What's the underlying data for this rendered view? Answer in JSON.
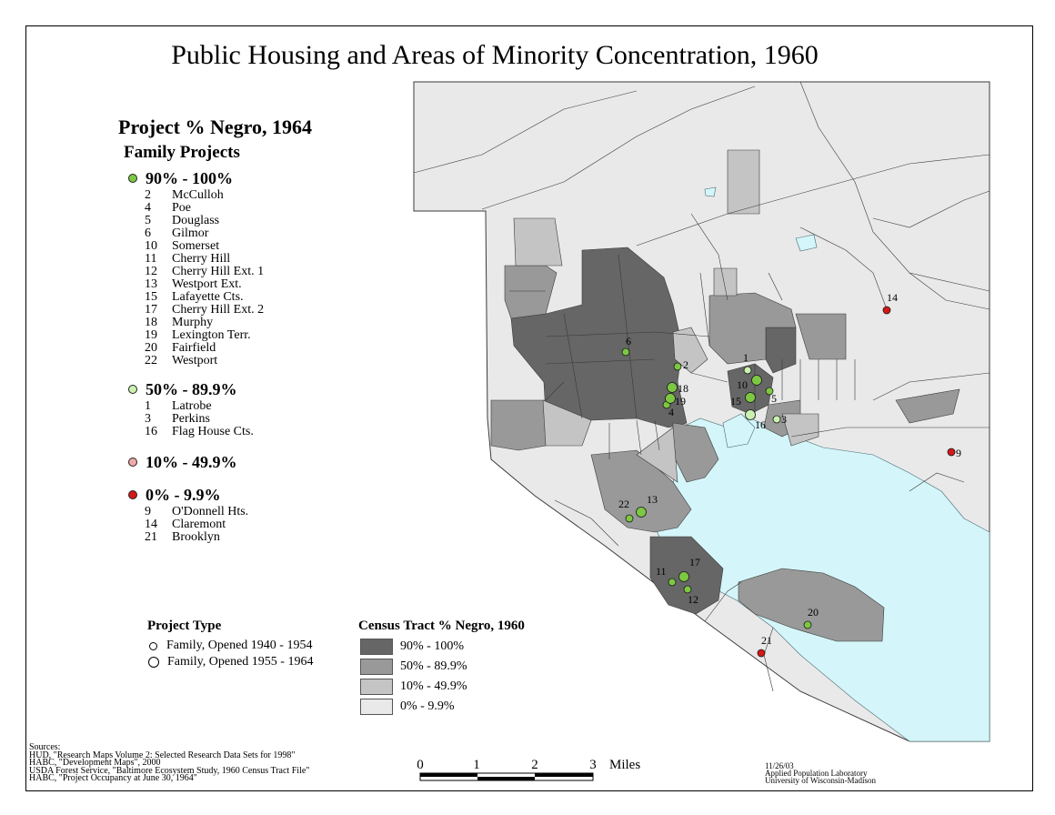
{
  "title": "Public Housing and Areas of Minority Concentration, 1960",
  "legend": {
    "title": "Project % Negro, 1964",
    "subtitle": "Family Projects",
    "groups": [
      {
        "label": "90% - 100%",
        "color": "#7cc842",
        "items": [
          {
            "num": "2",
            "name": "McCulloh"
          },
          {
            "num": "4",
            "name": "Poe"
          },
          {
            "num": "5",
            "name": "Douglass"
          },
          {
            "num": "6",
            "name": "Gilmor"
          },
          {
            "num": "10",
            "name": "Somerset"
          },
          {
            "num": "11",
            "name": "Cherry Hill"
          },
          {
            "num": "12",
            "name": "Cherry Hill Ext. 1"
          },
          {
            "num": "13",
            "name": "Westport Ext."
          },
          {
            "num": "15",
            "name": "Lafayette Cts."
          },
          {
            "num": "17",
            "name": "Cherry Hill Ext. 2"
          },
          {
            "num": "18",
            "name": "Murphy"
          },
          {
            "num": "19",
            "name": "Lexington Terr."
          },
          {
            "num": "20",
            "name": "Fairfield"
          },
          {
            "num": "22",
            "name": "Westport"
          }
        ]
      },
      {
        "label": "50% - 89.9%",
        "color": "#c9f2b0",
        "items": [
          {
            "num": "1",
            "name": "Latrobe"
          },
          {
            "num": "3",
            "name": "Perkins"
          },
          {
            "num": "16",
            "name": "Flag House Cts."
          }
        ]
      },
      {
        "label": "10% - 49.9%",
        "color": "#f0a8a8",
        "items": []
      },
      {
        "label": "0% - 9.9%",
        "color": "#d41818",
        "items": [
          {
            "num": "9",
            "name": "O'Donnell Hts."
          },
          {
            "num": "14",
            "name": "Claremont"
          },
          {
            "num": "21",
            "name": "Brooklyn"
          }
        ]
      }
    ]
  },
  "project_type": {
    "title": "Project Type",
    "items": [
      "Family, Opened 1940 - 1954",
      "Family, Opened 1955 - 1964"
    ]
  },
  "census_legend": {
    "title": "Census Tract % Negro, 1960",
    "classes": [
      {
        "label": "90% - 100%",
        "color": "#666666"
      },
      {
        "label": "50% - 89.9%",
        "color": "#999999"
      },
      {
        "label": "10% - 49.9%",
        "color": "#c4c4c4"
      },
      {
        "label": "0% - 9.9%",
        "color": "#e9e9e9"
      }
    ]
  },
  "scale_bar": {
    "ticks": [
      "0",
      "1",
      "2",
      "3"
    ],
    "unit": "Miles"
  },
  "sources": [
    "Sources:",
    "HUD, \"Research Maps Volume 2: Selected Research Data Sets for 1998\"",
    "HABC, \"Development Maps\", 2000",
    "USDA Forest Service, \"Baltimore Ecosystem Study, 1960 Census Tract File\"",
    "HABC, \"Project Occupancy at June 30, 1964\""
  ],
  "credits": [
    "11/26/03",
    "Applied Population Laboratory",
    "University of Wisconsin-Madison"
  ],
  "colors": {
    "water": "#d4f6fa",
    "outline": "#3a3a3a",
    "dot_90_100": "#7cc842",
    "dot_50_89": "#c9f2b0",
    "dot_0_9": "#d41818"
  },
  "projects": [
    {
      "id": "1",
      "category": "50-89.9",
      "opened": "1940-1954"
    },
    {
      "id": "2",
      "category": "90-100",
      "opened": "1940-1954"
    },
    {
      "id": "3",
      "category": "50-89.9",
      "opened": "1940-1954"
    },
    {
      "id": "4",
      "category": "90-100",
      "opened": "1940-1954"
    },
    {
      "id": "5",
      "category": "90-100",
      "opened": "1940-1954"
    },
    {
      "id": "6",
      "category": "90-100",
      "opened": "1940-1954"
    },
    {
      "id": "9",
      "category": "0-9.9",
      "opened": "1940-1954"
    },
    {
      "id": "10",
      "category": "90-100",
      "opened": "1955-1964"
    },
    {
      "id": "11",
      "category": "90-100",
      "opened": "1940-1954"
    },
    {
      "id": "12",
      "category": "90-100",
      "opened": "1940-1954"
    },
    {
      "id": "13",
      "category": "90-100",
      "opened": "1955-1964"
    },
    {
      "id": "14",
      "category": "0-9.9",
      "opened": "1940-1954"
    },
    {
      "id": "15",
      "category": "90-100",
      "opened": "1955-1964"
    },
    {
      "id": "16",
      "category": "50-89.9",
      "opened": "1955-1964"
    },
    {
      "id": "17",
      "category": "90-100",
      "opened": "1955-1964"
    },
    {
      "id": "18",
      "category": "90-100",
      "opened": "1955-1964"
    },
    {
      "id": "19",
      "category": "90-100",
      "opened": "1955-1964"
    },
    {
      "id": "20",
      "category": "90-100",
      "opened": "1940-1954"
    },
    {
      "id": "21",
      "category": "0-9.9",
      "opened": "1940-1954"
    },
    {
      "id": "22",
      "category": "90-100",
      "opened": "1940-1954"
    }
  ]
}
